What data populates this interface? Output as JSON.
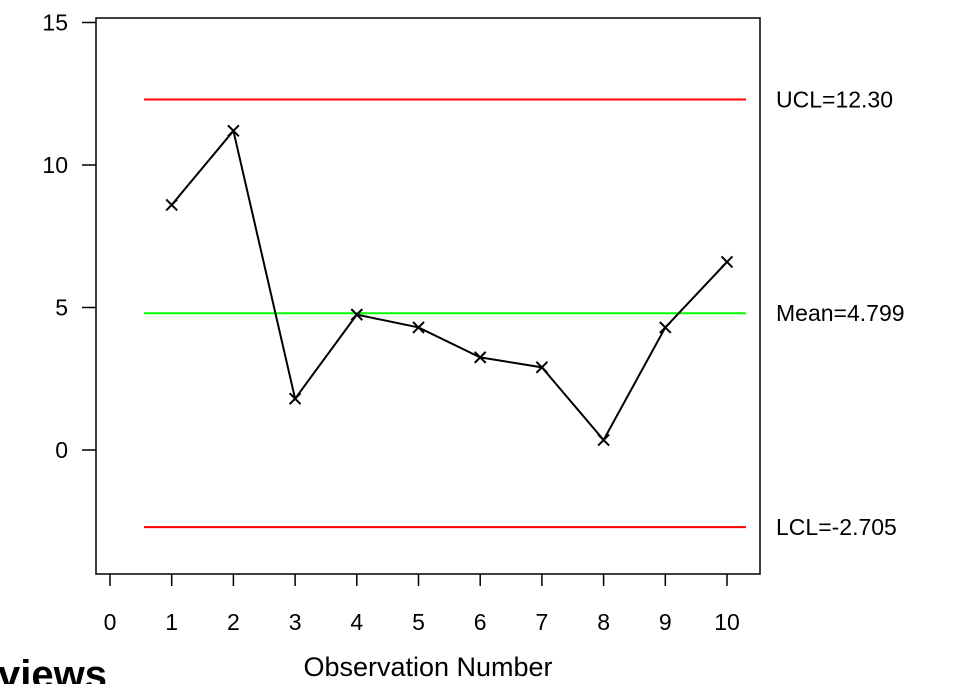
{
  "chart_data": {
    "type": "line",
    "title": "",
    "xlabel": "Observation Number",
    "ylabel": "",
    "xlim": [
      0,
      10
    ],
    "ylim": [
      -4.3,
      15
    ],
    "x_ticks": [
      "0",
      "1",
      "2",
      "3",
      "4",
      "5",
      "6",
      "7",
      "8",
      "9",
      "10"
    ],
    "y_ticks": [
      "0",
      "5",
      "10",
      "15"
    ],
    "series": [
      {
        "x": [
          1,
          2,
          3,
          4,
          5,
          6,
          7,
          8,
          9,
          10
        ],
        "values": [
          8.6,
          11.2,
          1.8,
          4.75,
          4.3,
          3.25,
          2.9,
          0.35,
          4.3,
          6.6
        ],
        "color": "#000000",
        "marker": "x"
      }
    ],
    "control_lines": [
      {
        "label": "UCL=12.30",
        "value": 12.3,
        "color": "#ff0000"
      },
      {
        "label": "Mean=4.799",
        "value": 4.799,
        "color": "#00ff00"
      },
      {
        "label": "LCL=-2.705",
        "value": -2.705,
        "color": "#ff0000"
      }
    ],
    "grid": false
  },
  "corner_text": "views"
}
